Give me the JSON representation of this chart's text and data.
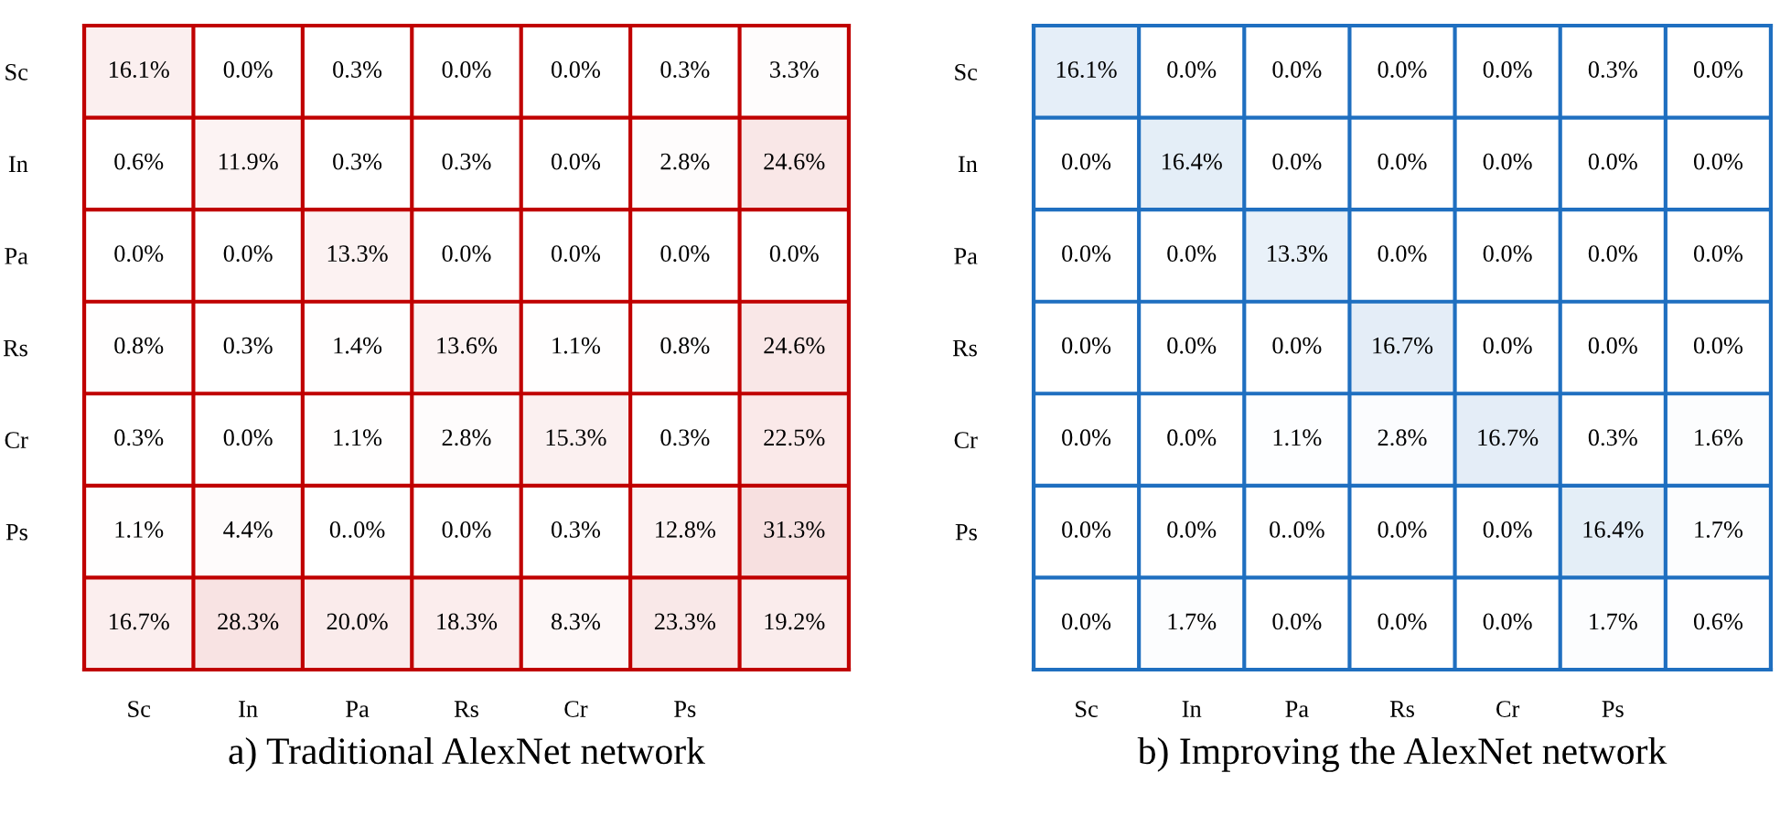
{
  "chart_data": [
    {
      "type": "heatmap",
      "title": "a) Traditional AlexNet network",
      "color": "#c00000",
      "categories": [
        "Sc",
        "In",
        "Pa",
        "Rs",
        "Cr",
        "Ps",
        null
      ],
      "y_categories": [
        "Sc",
        "In",
        "Pa",
        "Rs",
        "Cr",
        "Ps",
        null
      ],
      "cells": [
        [
          16.1,
          0.0,
          0.3,
          0.0,
          0.0,
          0.3,
          3.3
        ],
        [
          0.6,
          11.9,
          0.3,
          0.3,
          0.0,
          2.8,
          24.6
        ],
        [
          0.0,
          0.0,
          13.3,
          0.0,
          0.0,
          0.0,
          0.0
        ],
        [
          0.8,
          0.3,
          1.4,
          13.6,
          1.1,
          0.8,
          24.6
        ],
        [
          0.3,
          0.0,
          1.1,
          2.8,
          15.3,
          0.3,
          22.5
        ],
        [
          1.1,
          4.4,
          null,
          0.0,
          0.3,
          12.8,
          31.3
        ],
        [
          16.7,
          28.3,
          20.0,
          18.3,
          8.3,
          23.3,
          19.2
        ]
      ],
      "cell_labels": [
        [
          "16.1%",
          "0.0%",
          "0.3%",
          "0.0%",
          "0.0%",
          "0.3%",
          "3.3%"
        ],
        [
          "0.6%",
          "11.9%",
          "0.3%",
          "0.3%",
          "0.0%",
          "2.8%",
          "24.6%"
        ],
        [
          "0.0%",
          "0.0%",
          "13.3%",
          "0.0%",
          "0.0%",
          "0.0%",
          "0.0%"
        ],
        [
          "0.8%",
          "0.3%",
          "1.4%",
          "13.6%",
          "1.1%",
          "0.8%",
          "24.6%"
        ],
        [
          "0.3%",
          "0.0%",
          "1.1%",
          "2.8%",
          "15.3%",
          "0.3%",
          "22.5%"
        ],
        [
          "1.1%",
          "4.4%",
          "0..0%",
          "0.0%",
          "0.3%",
          "12.8%",
          "31.3%"
        ],
        [
          "16.7%",
          "28.3%",
          "20.0%",
          "18.3%",
          "8.3%",
          "23.3%",
          "19.2%"
        ]
      ]
    },
    {
      "type": "heatmap",
      "title": "b) Improving the AlexNet network",
      "color": "#1f6fc0",
      "categories": [
        "Sc",
        "In",
        "Pa",
        "Rs",
        "Cr",
        "Ps",
        null
      ],
      "y_categories": [
        "Sc",
        "In",
        "Pa",
        "Rs",
        "Cr",
        "Ps",
        null
      ],
      "cells": [
        [
          16.1,
          0.0,
          0.0,
          0.0,
          0.0,
          0.3,
          0.0
        ],
        [
          0.0,
          16.4,
          0.0,
          0.0,
          0.0,
          0.0,
          0.0
        ],
        [
          0.0,
          0.0,
          13.3,
          0.0,
          0.0,
          0.0,
          0.0
        ],
        [
          0.0,
          0.0,
          0.0,
          16.7,
          0.0,
          0.0,
          0.0
        ],
        [
          0.0,
          0.0,
          1.1,
          2.8,
          16.7,
          0.3,
          1.6
        ],
        [
          0.0,
          0.0,
          null,
          0.0,
          0.0,
          16.4,
          1.7
        ],
        [
          0.0,
          1.7,
          0.0,
          0.0,
          0.0,
          1.7,
          0.6
        ]
      ],
      "cell_labels": [
        [
          "16.1%",
          "0.0%",
          "0.0%",
          "0.0%",
          "0.0%",
          "0.3%",
          "0.0%"
        ],
        [
          "0.0%",
          "16.4%",
          "0.0%",
          "0.0%",
          "0.0%",
          "0.0%",
          "0.0%"
        ],
        [
          "0.0%",
          "0.0%",
          "13.3%",
          "0.0%",
          "0.0%",
          "0.0%",
          "0.0%"
        ],
        [
          "0.0%",
          "0.0%",
          "0.0%",
          "16.7%",
          "0.0%",
          "0.0%",
          "0.0%"
        ],
        [
          "0.0%",
          "0.0%",
          "1.1%",
          "2.8%",
          "16.7%",
          "0.3%",
          "1.6%"
        ],
        [
          "0.0%",
          "0.0%",
          "0..0%",
          "0.0%",
          "0.0%",
          "16.4%",
          "1.7%"
        ],
        [
          "0.0%",
          "1.7%",
          "0.0%",
          "0.0%",
          "0.0%",
          "1.7%",
          "0.6%"
        ]
      ]
    }
  ]
}
